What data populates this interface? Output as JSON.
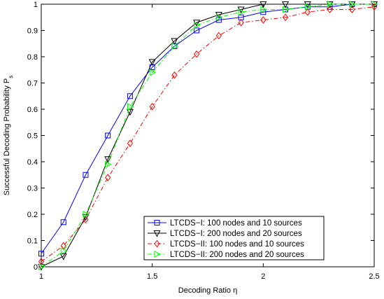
{
  "chart_data": {
    "type": "line",
    "title": "",
    "xlabel": "Decoding Ratio η",
    "ylabel": "Successful Decoding Probability P",
    "ylabel_subscript": "s",
    "xlim": [
      1,
      2.5
    ],
    "ylim": [
      0,
      1
    ],
    "xticks": [
      1,
      1.5,
      2,
      2.5
    ],
    "xtick_labels": [
      "1",
      "1.5",
      "2",
      "2.5"
    ],
    "yticks": [
      0,
      0.1,
      0.2,
      0.3,
      0.4,
      0.5,
      0.6,
      0.7,
      0.8,
      0.9,
      1
    ],
    "ytick_labels": [
      "0",
      "0.1",
      "0.2",
      "0.3",
      "0.4",
      "0.5",
      "0.6",
      "0.7",
      "0.8",
      "0.9",
      "1"
    ],
    "grid": false,
    "legend_position": "bottom-right",
    "x": [
      1.0,
      1.1,
      1.2,
      1.3,
      1.4,
      1.5,
      1.6,
      1.7,
      1.8,
      1.9,
      2.0,
      2.1,
      2.2,
      2.3,
      2.4,
      2.5
    ],
    "series": [
      {
        "name": "LTCDS−I: 100 nodes and 10 sources",
        "color": "#0000ff",
        "marker": "square",
        "line_style": "solid",
        "values": [
          0.05,
          0.17,
          0.35,
          0.5,
          0.65,
          0.76,
          0.84,
          0.9,
          0.94,
          0.95,
          0.97,
          0.98,
          0.99,
          0.99,
          1.0,
          1.0
        ]
      },
      {
        "name": "LTCDS−I: 200 nodes and 20 sources",
        "color": "#000000",
        "marker": "triangle-down",
        "line_style": "solid",
        "values": [
          0.0,
          0.04,
          0.19,
          0.41,
          0.59,
          0.78,
          0.86,
          0.93,
          0.96,
          0.98,
          1.0,
          1.0,
          1.0,
          1.0,
          1.0,
          1.0
        ]
      },
      {
        "name": "LTCDS−II: 100 nodes and 10 sources",
        "color": "#ff0000",
        "marker": "diamond",
        "line_style": "dashdot",
        "values": [
          0.02,
          0.08,
          0.18,
          0.34,
          0.47,
          0.61,
          0.73,
          0.81,
          0.88,
          0.93,
          0.94,
          0.95,
          0.97,
          0.98,
          0.98,
          0.99
        ]
      },
      {
        "name": "LTCDS−II: 200 nodes and 20 sources",
        "color": "#00ff00",
        "marker": "triangle-right",
        "line_style": "dashdot",
        "values": [
          0.0,
          0.06,
          0.2,
          0.39,
          0.61,
          0.74,
          0.84,
          0.92,
          0.95,
          0.97,
          0.98,
          0.98,
          0.99,
          1.0,
          1.0,
          1.0
        ]
      }
    ]
  }
}
